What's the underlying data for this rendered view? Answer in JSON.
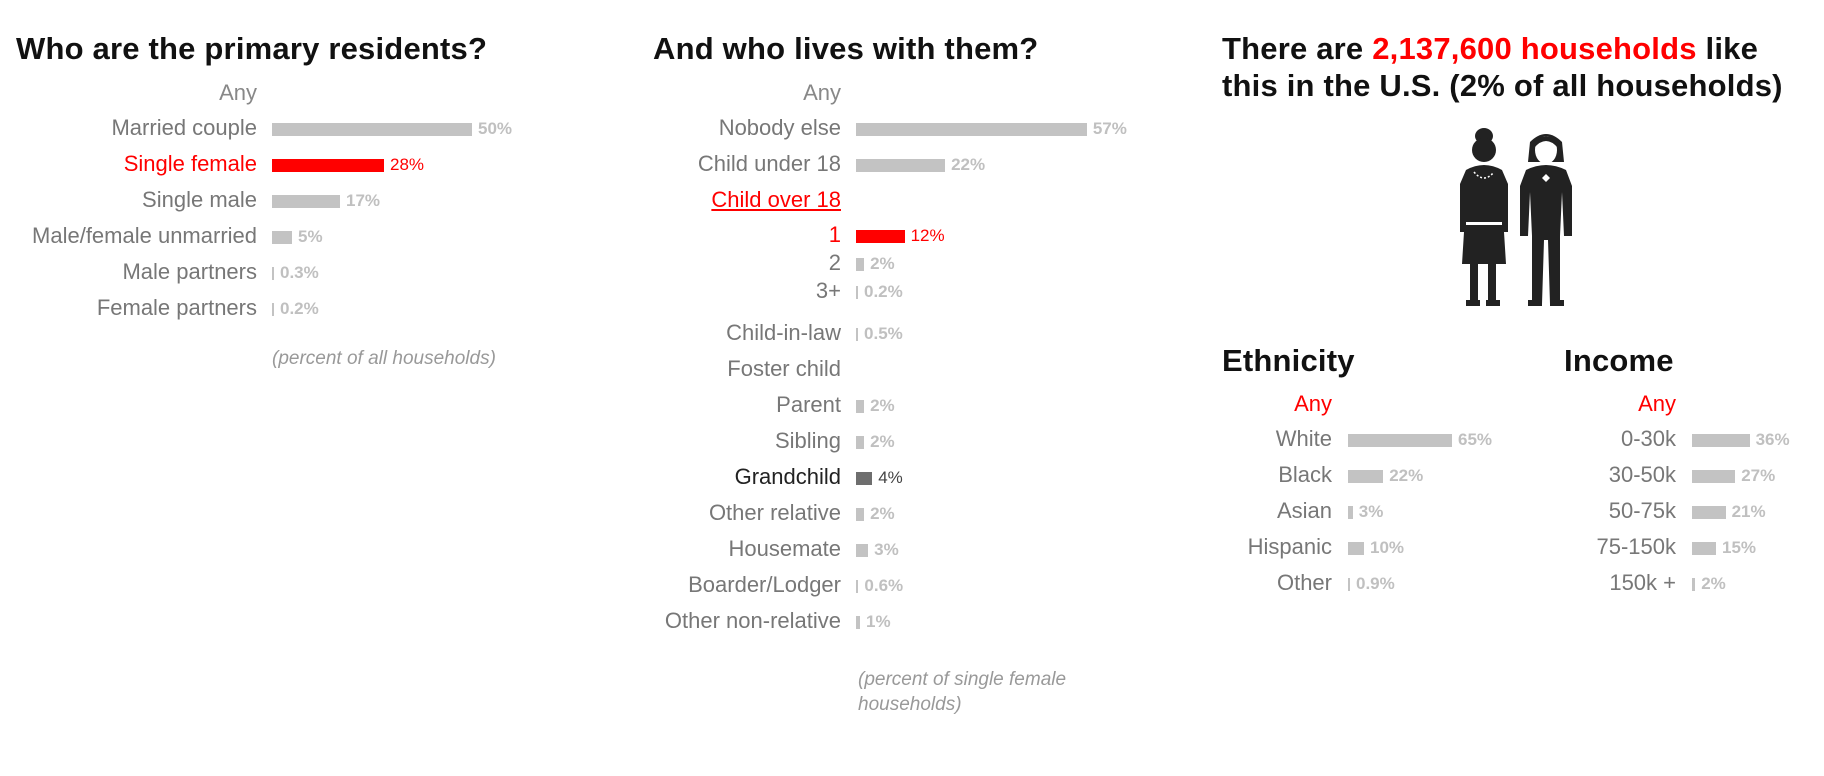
{
  "chart_data": [
    {
      "type": "bar",
      "title": "Who are the primary residents?",
      "any_label": "Any",
      "categories": [
        "Married couple",
        "Single female",
        "Single male",
        "Male/female unmarried",
        "Male partners",
        "Female partners"
      ],
      "values": [
        50,
        28,
        17,
        5,
        0.3,
        0.2
      ],
      "value_labels": [
        "50%",
        "28%",
        "17%",
        "5%",
        "0.3%",
        "0.2%"
      ],
      "highlight": "Single female",
      "note": "(percent of all households)"
    },
    {
      "type": "bar",
      "title": "And who lives with them?",
      "any_label": "Any",
      "categories": [
        "Nobody else",
        "Child under 18",
        "Child over 18",
        "1",
        "2",
        "3+",
        "Child-in-law",
        "Foster child",
        "Parent",
        "Sibling",
        "Grandchild",
        "Other relative",
        "Housemate",
        "Boarder/Lodger",
        "Other non-relative"
      ],
      "values": [
        57,
        22,
        null,
        12,
        2,
        0.2,
        0.5,
        null,
        2,
        2,
        4,
        2,
        3,
        0.6,
        1
      ],
      "value_labels": [
        "57%",
        "22%",
        "",
        "12%",
        "2%",
        "0.2%",
        "0.5%",
        "",
        "2%",
        "2%",
        "4%",
        "2%",
        "3%",
        "0.6%",
        "1%"
      ],
      "highlight": "1",
      "link": "Child over 18",
      "emphasis": "Grandchild",
      "note_line1": "(percent of single female",
      "note_line2": "households)"
    },
    {
      "type": "bar",
      "title": "Ethnicity",
      "any_label": "Any",
      "categories": [
        "White",
        "Black",
        "Asian",
        "Hispanic",
        "Other"
      ],
      "values": [
        65,
        22,
        3,
        10,
        0.9
      ],
      "value_labels": [
        "65%",
        "22%",
        "3%",
        "10%",
        "0.9%"
      ]
    },
    {
      "type": "bar",
      "title": "Income",
      "any_label": "Any",
      "categories": [
        "0-30k",
        "30-50k",
        "50-75k",
        "75-150k",
        "150k +"
      ],
      "values": [
        36,
        27,
        21,
        15,
        2
      ],
      "value_labels": [
        "36%",
        "27%",
        "21%",
        "15%",
        "2%"
      ]
    }
  ],
  "summary": {
    "prefix": "There are ",
    "highlight": "2,137,600 households",
    "suffix_line1": " like",
    "line2": "this in the U.S. (2% of all households)"
  },
  "colors": {
    "highlight": "#ff0000",
    "bar": "#c3c3c3",
    "emphasis": "#6e6e6e"
  },
  "icons": [
    "two-women-icon"
  ]
}
